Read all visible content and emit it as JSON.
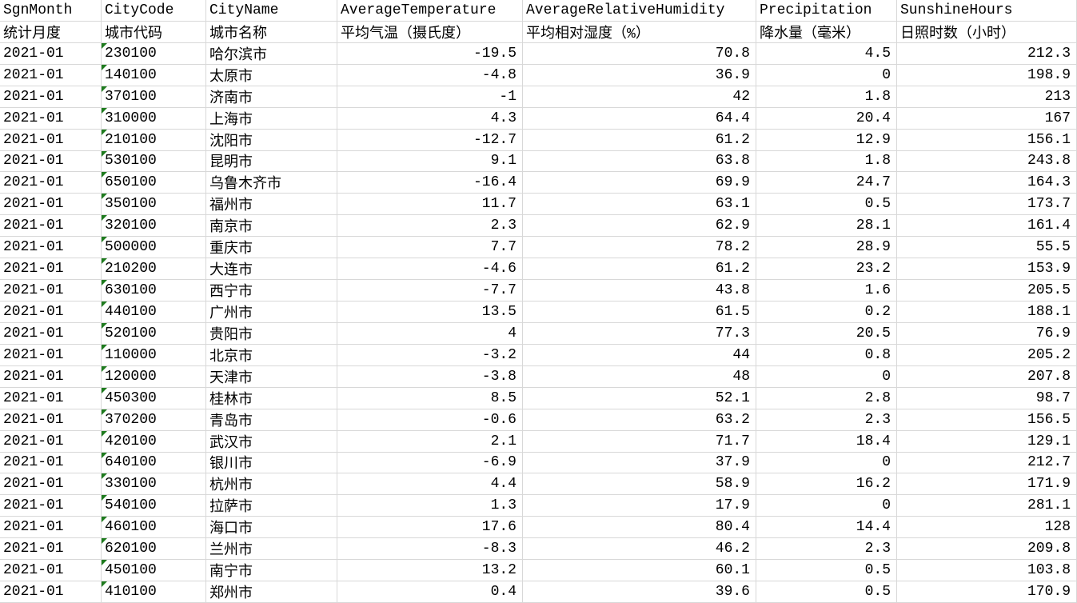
{
  "app": {
    "description": "spreadsheet grid of monthly city weather statistics",
    "period": "2021-01"
  },
  "colors": {
    "background": "#ffffff",
    "gridline": "#d8d8d8",
    "text": "#000000",
    "stored_as_text_triangle": "#1e7b1e"
  },
  "table": {
    "columns": [
      {
        "key": "sgn_month",
        "en": "SgnMonth",
        "zh": "统计月度",
        "align": "left"
      },
      {
        "key": "city_code",
        "en": "CityCode",
        "zh": "城市代码",
        "align": "left",
        "flag": "number-stored-as-text"
      },
      {
        "key": "city_name",
        "en": "CityName",
        "zh": "城市名称",
        "align": "left"
      },
      {
        "key": "avg_temperature",
        "en": "AverageTemperature",
        "zh": "平均气温（摄氏度）",
        "align": "right"
      },
      {
        "key": "avg_relative_humidity",
        "en": "AverageRelativeHumidity",
        "zh": "平均相对湿度（%）",
        "align": "right"
      },
      {
        "key": "precipitation",
        "en": "Precipitation",
        "zh": "降水量（毫米）",
        "align": "right"
      },
      {
        "key": "sunshine_hours",
        "en": "SunshineHours",
        "zh": "日照时数（小时）",
        "align": "right"
      }
    ],
    "rows": [
      [
        "2021-01",
        "230100",
        "哈尔滨市",
        "-19.5",
        "70.8",
        "4.5",
        "212.3"
      ],
      [
        "2021-01",
        "140100",
        "太原市",
        "-4.8",
        "36.9",
        "0",
        "198.9"
      ],
      [
        "2021-01",
        "370100",
        "济南市",
        "-1",
        "42",
        "1.8",
        "213"
      ],
      [
        "2021-01",
        "310000",
        "上海市",
        "4.3",
        "64.4",
        "20.4",
        "167"
      ],
      [
        "2021-01",
        "210100",
        "沈阳市",
        "-12.7",
        "61.2",
        "12.9",
        "156.1"
      ],
      [
        "2021-01",
        "530100",
        "昆明市",
        "9.1",
        "63.8",
        "1.8",
        "243.8"
      ],
      [
        "2021-01",
        "650100",
        "乌鲁木齐市",
        "-16.4",
        "69.9",
        "24.7",
        "164.3"
      ],
      [
        "2021-01",
        "350100",
        "福州市",
        "11.7",
        "63.1",
        "0.5",
        "173.7"
      ],
      [
        "2021-01",
        "320100",
        "南京市",
        "2.3",
        "62.9",
        "28.1",
        "161.4"
      ],
      [
        "2021-01",
        "500000",
        "重庆市",
        "7.7",
        "78.2",
        "28.9",
        "55.5"
      ],
      [
        "2021-01",
        "210200",
        "大连市",
        "-4.6",
        "61.2",
        "23.2",
        "153.9"
      ],
      [
        "2021-01",
        "630100",
        "西宁市",
        "-7.7",
        "43.8",
        "1.6",
        "205.5"
      ],
      [
        "2021-01",
        "440100",
        "广州市",
        "13.5",
        "61.5",
        "0.2",
        "188.1"
      ],
      [
        "2021-01",
        "520100",
        "贵阳市",
        "4",
        "77.3",
        "20.5",
        "76.9"
      ],
      [
        "2021-01",
        "110000",
        "北京市",
        "-3.2",
        "44",
        "0.8",
        "205.2"
      ],
      [
        "2021-01",
        "120000",
        "天津市",
        "-3.8",
        "48",
        "0",
        "207.8"
      ],
      [
        "2021-01",
        "450300",
        "桂林市",
        "8.5",
        "52.1",
        "2.8",
        "98.7"
      ],
      [
        "2021-01",
        "370200",
        "青岛市",
        "-0.6",
        "63.2",
        "2.3",
        "156.5"
      ],
      [
        "2021-01",
        "420100",
        "武汉市",
        "2.1",
        "71.7",
        "18.4",
        "129.1"
      ],
      [
        "2021-01",
        "640100",
        "银川市",
        "-6.9",
        "37.9",
        "0",
        "212.7"
      ],
      [
        "2021-01",
        "330100",
        "杭州市",
        "4.4",
        "58.9",
        "16.2",
        "171.9"
      ],
      [
        "2021-01",
        "540100",
        "拉萨市",
        "1.3",
        "17.9",
        "0",
        "281.1"
      ],
      [
        "2021-01",
        "460100",
        "海口市",
        "17.6",
        "80.4",
        "14.4",
        "128"
      ],
      [
        "2021-01",
        "620100",
        "兰州市",
        "-8.3",
        "46.2",
        "2.3",
        "209.8"
      ],
      [
        "2021-01",
        "450100",
        "南宁市",
        "13.2",
        "60.1",
        "0.5",
        "103.8"
      ],
      [
        "2021-01",
        "410100",
        "郑州市",
        "0.4",
        "39.6",
        "0.5",
        "170.9"
      ]
    ]
  }
}
